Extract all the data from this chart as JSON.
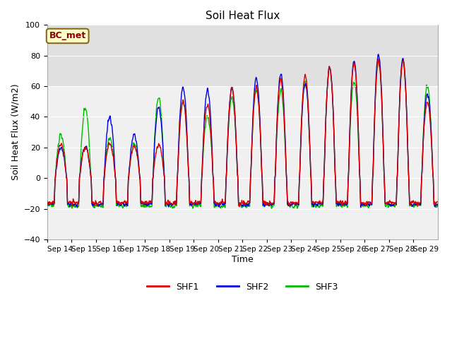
{
  "title": "Soil Heat Flux",
  "xlabel": "Time",
  "ylabel": "Soil Heat Flux (W/m2)",
  "ylim": [
    -40,
    100
  ],
  "yticks": [
    -40,
    -20,
    0,
    20,
    40,
    60,
    80,
    100
  ],
  "xtick_labels": [
    "Sep 14",
    "Sep 15",
    "Sep 16",
    "Sep 17",
    "Sep 18",
    "Sep 19",
    "Sep 20",
    "Sep 21",
    "Sep 22",
    "Sep 23",
    "Sep 24",
    "Sep 25",
    "Sep 26",
    "Sep 27",
    "Sep 28",
    "Sep 29"
  ],
  "shf1_color": "#dd0000",
  "shf2_color": "#0000dd",
  "shf3_color": "#00bb00",
  "fig_bg": "#ffffff",
  "plot_bg": "#f0f0f0",
  "shade_bg": "#e0e0e0",
  "legend_labels": [
    "SHF1",
    "SHF2",
    "SHF3"
  ],
  "annotation_text": "BC_met",
  "annotation_color": "#8b0000",
  "annotation_bg": "#ffffcc",
  "annotation_border": "#8b6914",
  "grid_color": "#ffffff",
  "linewidth": 1.0,
  "n_days": 16,
  "pts_per_day": 96
}
